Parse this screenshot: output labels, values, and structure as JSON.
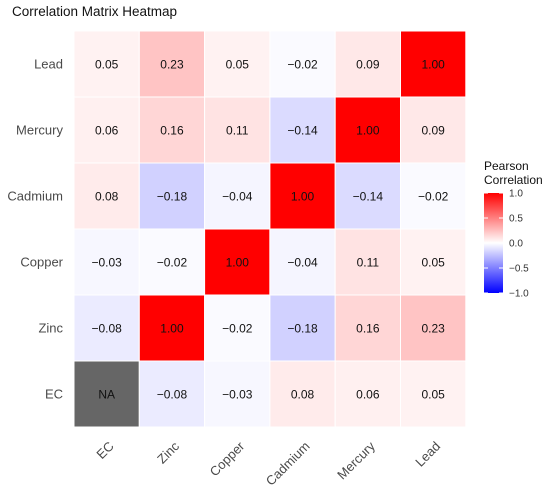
{
  "chart_data": {
    "type": "heatmap",
    "title": "Correlation Matrix Heatmap",
    "xlabel": "",
    "ylabel": "",
    "x_categories": [
      "EC",
      "Zinc",
      "Copper",
      "Cadmium",
      "Mercury",
      "Lead"
    ],
    "y_categories_top_to_bottom": [
      "Lead",
      "Mercury",
      "Cadmium",
      "Copper",
      "Zinc",
      "EC"
    ],
    "values": [
      [
        0.05,
        0.23,
        0.05,
        -0.02,
        0.09,
        1.0
      ],
      [
        0.06,
        0.16,
        0.11,
        -0.14,
        1.0,
        0.09
      ],
      [
        0.08,
        -0.18,
        -0.04,
        1.0,
        -0.14,
        -0.02
      ],
      [
        -0.03,
        -0.02,
        1.0,
        -0.04,
        0.11,
        0.05
      ],
      [
        -0.08,
        1.0,
        -0.02,
        -0.18,
        0.16,
        0.23
      ],
      [
        null,
        -0.08,
        -0.03,
        0.08,
        0.06,
        0.05
      ]
    ],
    "na_label": "NA",
    "na_color": "#666666",
    "legend": {
      "title_lines": [
        "Pearson",
        "Correlation"
      ],
      "ticks": [
        "1.0",
        "0.5",
        "0.0",
        "−0.5",
        "−1.0"
      ],
      "tick_values": [
        1.0,
        0.5,
        0.0,
        -0.5,
        -1.0
      ],
      "range": [
        -1.0,
        1.0
      ],
      "placement": "right"
    },
    "colors": {
      "low": "#0000ff",
      "mid": "#ffffff",
      "high": "#ff0000",
      "grid": "#ffffff"
    },
    "grid": true
  }
}
